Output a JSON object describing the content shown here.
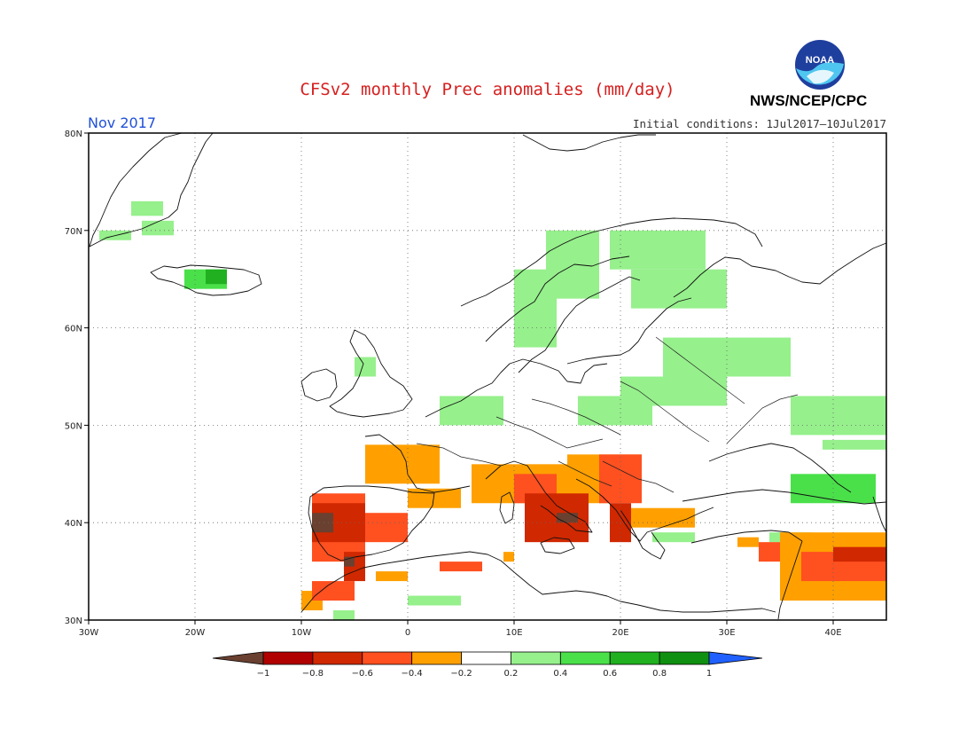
{
  "title": "CFSv2 monthly Prec anomalies (mm/day)",
  "month_label": "Nov 2017",
  "initial_conditions": "Initial conditions: 1Jul2017–10Jul2017",
  "agency": "NWS/NCEP/CPC",
  "logo_text": "NOAA",
  "map": {
    "lon_range": [
      -30,
      45
    ],
    "lat_range": [
      30,
      80
    ],
    "lon_ticks": [
      "30W",
      "20W",
      "10W",
      "0",
      "10E",
      "20E",
      "30E",
      "40E"
    ],
    "lat_ticks": [
      "30N",
      "40N",
      "50N",
      "60N",
      "70N",
      "80N"
    ],
    "gridlines": true
  },
  "legend": {
    "labels": [
      "−1",
      "−0.8",
      "−0.6",
      "−0.4",
      "−0.2",
      "0.2",
      "0.4",
      "0.6",
      "0.8",
      "1"
    ],
    "colors": [
      "#6a4030",
      "#b00000",
      "#d02800",
      "#ff5020",
      "#ffa000",
      "#ffffff",
      "#96f08c",
      "#4ae04a",
      "#20b020",
      "#109010",
      "#2060ff"
    ]
  },
  "chart_data": {
    "type": "heatmap",
    "units": "mm/day",
    "colorscale_bins": [
      -1,
      -0.8,
      -0.6,
      -0.4,
      -0.2,
      0.2,
      0.4,
      0.6,
      0.8,
      1
    ],
    "regions": [
      {
        "value": 0.3,
        "lon": [
          -26,
          -23
        ],
        "lat": [
          71.5,
          73
        ]
      },
      {
        "value": 0.3,
        "lon": [
          -25,
          -22
        ],
        "lat": [
          69.5,
          71
        ]
      },
      {
        "value": 0.3,
        "lon": [
          -29,
          -26
        ],
        "lat": [
          69,
          70
        ]
      },
      {
        "value": 0.5,
        "lon": [
          -21,
          -17
        ],
        "lat": [
          64,
          66
        ]
      },
      {
        "value": 0.7,
        "lon": [
          -19,
          -17
        ],
        "lat": [
          64.5,
          66
        ]
      },
      {
        "value": 0.3,
        "lon": [
          10,
          14
        ],
        "lat": [
          58,
          66
        ]
      },
      {
        "value": 0.3,
        "lon": [
          13,
          18
        ],
        "lat": [
          63,
          70
        ]
      },
      {
        "value": 0.3,
        "lon": [
          19,
          28
        ],
        "lat": [
          66,
          70
        ]
      },
      {
        "value": 0.3,
        "lon": [
          21,
          30
        ],
        "lat": [
          62,
          66
        ]
      },
      {
        "value": 0.3,
        "lon": [
          24,
          36
        ],
        "lat": [
          55,
          59
        ]
      },
      {
        "value": 0.3,
        "lon": [
          20,
          30
        ],
        "lat": [
          52,
          55
        ]
      },
      {
        "value": 0.3,
        "lon": [
          16,
          23
        ],
        "lat": [
          50,
          53
        ]
      },
      {
        "value": 0.3,
        "lon": [
          3,
          9
        ],
        "lat": [
          50,
          53
        ]
      },
      {
        "value": 0.3,
        "lon": [
          -5,
          -3
        ],
        "lat": [
          55,
          57
        ]
      },
      {
        "value": 0.3,
        "lon": [
          36,
          45
        ],
        "lat": [
          49,
          53
        ]
      },
      {
        "value": 0.3,
        "lon": [
          39,
          45
        ],
        "lat": [
          47.5,
          48.5
        ]
      },
      {
        "value": 0.5,
        "lon": [
          36,
          44
        ],
        "lat": [
          42,
          45
        ]
      },
      {
        "value": 0.3,
        "lon": [
          0,
          5
        ],
        "lat": [
          31.5,
          32.5
        ]
      },
      {
        "value": 0.3,
        "lon": [
          -7,
          -5
        ],
        "lat": [
          30,
          31
        ]
      },
      {
        "value": 0.3,
        "lon": [
          23,
          27
        ],
        "lat": [
          38,
          39
        ]
      },
      {
        "value": 0.3,
        "lon": [
          34,
          38
        ],
        "lat": [
          38,
          39
        ]
      },
      {
        "value": -0.3,
        "lon": [
          -4,
          3
        ],
        "lat": [
          44,
          48
        ]
      },
      {
        "value": -0.3,
        "lon": [
          0,
          5
        ],
        "lat": [
          41.5,
          43.5
        ]
      },
      {
        "value": -0.3,
        "lon": [
          6,
          19
        ],
        "lat": [
          42,
          46
        ]
      },
      {
        "value": -0.3,
        "lon": [
          15,
          22
        ],
        "lat": [
          45,
          47
        ]
      },
      {
        "value": -0.3,
        "lon": [
          21,
          27
        ],
        "lat": [
          39.5,
          41.5
        ]
      },
      {
        "value": -0.3,
        "lon": [
          -10,
          -8
        ],
        "lat": [
          31,
          33
        ]
      },
      {
        "value": -0.3,
        "lon": [
          -3,
          0
        ],
        "lat": [
          34,
          35
        ]
      },
      {
        "value": -0.3,
        "lon": [
          35,
          45
        ],
        "lat": [
          32,
          39
        ]
      },
      {
        "value": -0.3,
        "lon": [
          9,
          10
        ],
        "lat": [
          36,
          37
        ]
      },
      {
        "value": -0.3,
        "lon": [
          31,
          33
        ],
        "lat": [
          37.5,
          38.5
        ]
      },
      {
        "value": -0.5,
        "lon": [
          -9,
          -4
        ],
        "lat": [
          36,
          43
        ]
      },
      {
        "value": -0.5,
        "lon": [
          -4,
          0
        ],
        "lat": [
          38,
          41
        ]
      },
      {
        "value": -0.5,
        "lon": [
          3,
          7
        ],
        "lat": [
          35,
          36
        ]
      },
      {
        "value": -0.5,
        "lon": [
          10,
          14
        ],
        "lat": [
          42,
          45
        ]
      },
      {
        "value": -0.5,
        "lon": [
          18,
          22
        ],
        "lat": [
          42,
          47
        ]
      },
      {
        "value": -0.5,
        "lon": [
          37,
          45
        ],
        "lat": [
          34,
          37
        ]
      },
      {
        "value": -0.5,
        "lon": [
          -9,
          -5
        ],
        "lat": [
          32,
          34
        ]
      },
      {
        "value": -0.5,
        "lon": [
          33,
          35
        ],
        "lat": [
          36,
          38
        ]
      },
      {
        "value": -0.7,
        "lon": [
          -9,
          -4
        ],
        "lat": [
          38,
          42
        ]
      },
      {
        "value": -0.7,
        "lon": [
          11,
          17
        ],
        "lat": [
          38,
          43
        ]
      },
      {
        "value": -0.7,
        "lon": [
          19,
          21
        ],
        "lat": [
          38,
          42
        ]
      },
      {
        "value": -0.7,
        "lon": [
          -6,
          -4
        ],
        "lat": [
          34,
          37
        ]
      },
      {
        "value": -0.7,
        "lon": [
          40,
          45
        ],
        "lat": [
          36,
          37.5
        ]
      },
      {
        "value": -1.1,
        "lon": [
          -9,
          -7
        ],
        "lat": [
          39,
          41
        ]
      },
      {
        "value": -1.1,
        "lon": [
          14,
          16
        ],
        "lat": [
          40,
          41
        ]
      },
      {
        "value": -1.1,
        "lon": [
          -6,
          -5
        ],
        "lat": [
          35.5,
          36.5
        ]
      }
    ]
  }
}
